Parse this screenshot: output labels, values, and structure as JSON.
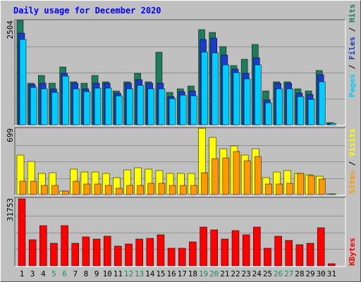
{
  "title": "Daily usage for December 2020",
  "colors": {
    "background": "#c0c0c0",
    "title": "#0000ff",
    "hits": "#1c7c5c",
    "files": "#1a3bcc",
    "pages": "#00ccff",
    "visits": "#ffff00",
    "sites": "#ff9900",
    "kbytes": "#ff0000",
    "weekend_label": "#228866",
    "weekday_label": "#000000"
  },
  "chart_data": [
    {
      "type": "bar",
      "panel": "hits-files-pages",
      "ymax_label": "2504",
      "ylim": [
        0,
        2504
      ],
      "legend": [
        "Pages",
        "Files",
        "Hits"
      ],
      "series": [
        {
          "name": "Hits",
          "values": [
            2504,
            990,
            1180,
            990,
            1380,
            1030,
            990,
            1180,
            1030,
            820,
            1030,
            1230,
            1030,
            1750,
            780,
            860,
            930,
            2290,
            2220,
            1870,
            1420,
            1580,
            1930,
            820,
            1030,
            1030,
            860,
            810,
            1310,
            50
          ]
        },
        {
          "name": "Files",
          "values": [
            2200,
            960,
            1000,
            860,
            1240,
            1000,
            860,
            1000,
            1000,
            760,
            1000,
            1080,
            1000,
            1000,
            670,
            800,
            820,
            2050,
            2080,
            1670,
            1340,
            1240,
            1600,
            600,
            1000,
            1000,
            760,
            720,
            1200,
            40
          ]
        },
        {
          "name": "Pages",
          "values": [
            2050,
            900,
            870,
            780,
            1170,
            860,
            790,
            880,
            880,
            700,
            870,
            940,
            870,
            870,
            630,
            710,
            700,
            1740,
            1720,
            1430,
            1260,
            1100,
            1430,
            530,
            860,
            860,
            680,
            610,
            1030,
            30
          ]
        }
      ]
    },
    {
      "type": "bar",
      "panel": "visits-sites",
      "ymax_label": "699",
      "ylim": [
        0,
        699
      ],
      "legend": [
        "Sites",
        "Visits"
      ],
      "series": [
        {
          "name": "Visits",
          "values": [
            420,
            350,
            220,
            230,
            40,
            270,
            240,
            240,
            220,
            180,
            260,
            280,
            270,
            250,
            220,
            220,
            220,
            699,
            600,
            480,
            510,
            420,
            480,
            180,
            240,
            250,
            220,
            210,
            190,
            10
          ]
        },
        {
          "name": "Sites",
          "values": [
            140,
            140,
            100,
            100,
            40,
            140,
            110,
            110,
            100,
            70,
            100,
            100,
            120,
            120,
            100,
            100,
            100,
            230,
            380,
            390,
            450,
            360,
            400,
            110,
            110,
            120,
            220,
            200,
            160,
            10
          ]
        }
      ]
    },
    {
      "type": "bar",
      "panel": "kbytes",
      "ymax_label": "31753",
      "ylim": [
        0,
        31753
      ],
      "legend": [
        "KBytes"
      ],
      "series": [
        {
          "name": "KBytes",
          "values": [
            31753,
            12300,
            19100,
            10700,
            19100,
            10800,
            13800,
            12700,
            14000,
            9300,
            10500,
            12600,
            13000,
            14600,
            8500,
            8400,
            11400,
            18300,
            16900,
            12600,
            16800,
            14800,
            18300,
            8200,
            14000,
            12100,
            10100,
            10700,
            18000,
            1000
          ]
        }
      ]
    }
  ],
  "x_axis": {
    "labels": [
      "1",
      "3",
      "4",
      "5",
      "6",
      "7",
      "8",
      "9",
      "10",
      "11",
      "12",
      "13",
      "14",
      "15",
      "16",
      "17",
      "18",
      "19",
      "20",
      "21",
      "22",
      "23",
      "24",
      "25",
      "26",
      "27",
      "28",
      "29",
      "30",
      "31"
    ],
    "weekend_labels": [
      "5",
      "6",
      "12",
      "13",
      "19",
      "20",
      "26",
      "27"
    ]
  }
}
